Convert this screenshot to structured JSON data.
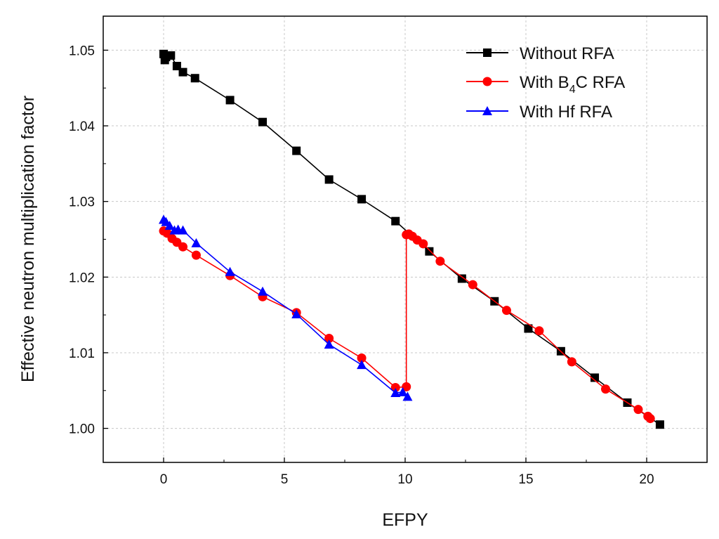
{
  "chart_data": {
    "type": "line",
    "title": "",
    "xlabel": "EFPY",
    "ylabel": "Effective neutron multiplication factor",
    "xlim": [
      -2.5,
      22.5
    ],
    "ylim": [
      0.9955,
      1.0545
    ],
    "xticks": [
      0,
      5,
      10,
      15,
      20
    ],
    "xtick_labels": [
      "0",
      "5",
      "10",
      "15",
      "20"
    ],
    "yticks": [
      1.0,
      1.01,
      1.02,
      1.03,
      1.04,
      1.05
    ],
    "ytick_labels": [
      "1.00",
      "1.01",
      "1.02",
      "1.03",
      "1.04",
      "1.05"
    ],
    "grid": true,
    "legend_position": "top-right",
    "series": [
      {
        "name": "Without RFA",
        "color": "#000000",
        "marker": "square",
        "x": [
          0.0,
          0.05,
          0.1,
          0.3,
          0.55,
          0.8,
          1.3,
          2.75,
          4.1,
          5.5,
          6.85,
          8.2,
          9.6,
          11.0,
          12.35,
          13.7,
          15.1,
          16.45,
          17.85,
          19.2,
          20.55
        ],
        "y": [
          1.0495,
          1.0487,
          1.0491,
          1.0493,
          1.0479,
          1.0471,
          1.0463,
          1.0434,
          1.0405,
          1.0367,
          1.0329,
          1.0303,
          1.0274,
          1.0234,
          1.0198,
          1.0168,
          1.0132,
          1.0102,
          1.0067,
          1.0034,
          1.0005
        ]
      },
      {
        "name": "With B4C RFA",
        "legend_label": {
          "before": "With B",
          "sub": "4",
          "after": "C RFA"
        },
        "color": "#ff0000",
        "marker": "circle",
        "x": [
          0.0,
          0.15,
          0.35,
          0.55,
          0.8,
          1.35,
          2.75,
          4.1,
          5.5,
          6.85,
          8.2,
          9.6,
          10.05,
          10.05,
          10.15,
          10.3,
          10.5,
          10.75,
          11.45,
          12.8,
          14.2,
          15.55,
          16.9,
          18.3,
          19.65,
          20.05,
          20.15
        ],
        "y": [
          1.0261,
          1.0258,
          1.0251,
          1.0246,
          1.024,
          1.0229,
          1.0202,
          1.0174,
          1.0153,
          1.0119,
          1.0093,
          1.0054,
          1.0055,
          1.0256,
          1.0257,
          1.0254,
          1.0249,
          1.0244,
          1.0221,
          1.019,
          1.0156,
          1.0129,
          1.0088,
          1.0052,
          1.0025,
          1.0016,
          1.0013
        ]
      },
      {
        "name": "With Hf RFA",
        "color": "#0000ff",
        "marker": "triangle",
        "x": [
          0.0,
          0.1,
          0.25,
          0.45,
          0.6,
          0.8,
          1.35,
          2.75,
          4.1,
          5.5,
          6.85,
          8.2,
          9.6,
          9.9,
          10.1
        ],
        "y": [
          1.0276,
          1.0273,
          1.0268,
          1.0262,
          1.0263,
          1.0262,
          1.0245,
          1.0207,
          1.0181,
          1.0151,
          1.0111,
          1.0084,
          1.0047,
          1.0048,
          1.0042
        ]
      }
    ]
  }
}
